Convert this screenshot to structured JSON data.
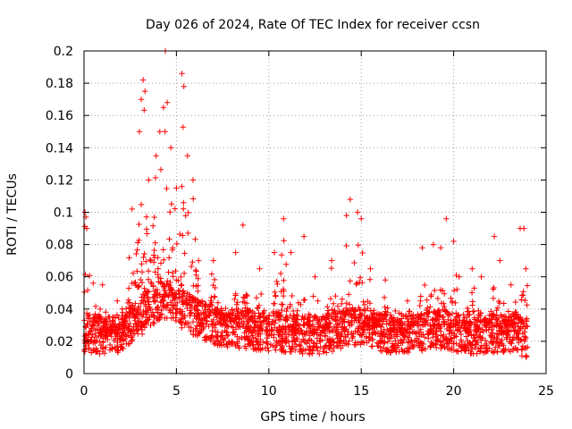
{
  "chart_data": {
    "type": "scatter",
    "title": "Day 026 of 2024, Rate Of TEC Index for receiver ccsn",
    "xlabel": "GPS time / hours",
    "ylabel": "ROTI / TECUs",
    "xlim": [
      0,
      25
    ],
    "ylim": [
      0,
      0.2
    ],
    "xticks": [
      0,
      5,
      10,
      15,
      20,
      25
    ],
    "yticks": [
      0,
      0.02,
      0.04,
      0.06,
      0.08,
      0.1,
      0.12,
      0.14,
      0.16,
      0.18,
      0.2
    ],
    "ytick_labels": [
      "0",
      "0.02",
      "0.04",
      "0.06",
      "0.08",
      "0.1",
      "0.12",
      "0.14",
      "0.16",
      "0.18",
      "0.2"
    ],
    "grid": true,
    "marker": "+",
    "marker_color": "#ff0000",
    "baseline": [
      [
        0.0,
        0.025
      ],
      [
        1.0,
        0.024
      ],
      [
        2.0,
        0.025
      ],
      [
        2.5,
        0.03
      ],
      [
        3.0,
        0.035
      ],
      [
        3.5,
        0.04
      ],
      [
        4.0,
        0.045
      ],
      [
        4.5,
        0.045
      ],
      [
        5.0,
        0.04
      ],
      [
        5.5,
        0.04
      ],
      [
        6.0,
        0.035
      ],
      [
        7.0,
        0.03
      ],
      [
        8.0,
        0.028
      ],
      [
        9.0,
        0.027
      ],
      [
        10.0,
        0.026
      ],
      [
        11.0,
        0.025
      ],
      [
        12.0,
        0.024
      ],
      [
        13.0,
        0.024
      ],
      [
        14.0,
        0.028
      ],
      [
        15.0,
        0.03
      ],
      [
        16.0,
        0.026
      ],
      [
        17.0,
        0.024
      ],
      [
        18.0,
        0.025
      ],
      [
        19.0,
        0.028
      ],
      [
        20.0,
        0.026
      ],
      [
        21.0,
        0.024
      ],
      [
        22.0,
        0.025
      ],
      [
        23.0,
        0.025
      ],
      [
        24.0,
        0.022
      ]
    ],
    "peaks": [
      {
        "x": 0.05,
        "y": 0.1
      },
      {
        "x": 0.1,
        "y": 0.097
      },
      {
        "x": 0.15,
        "y": 0.09
      },
      {
        "x": 0.5,
        "y": 0.056
      },
      {
        "x": 1.0,
        "y": 0.055
      },
      {
        "x": 1.8,
        "y": 0.045
      },
      {
        "x": 2.6,
        "y": 0.102
      },
      {
        "x": 3.0,
        "y": 0.15
      },
      {
        "x": 3.1,
        "y": 0.17
      },
      {
        "x": 3.2,
        "y": 0.182
      },
      {
        "x": 3.3,
        "y": 0.175
      },
      {
        "x": 3.5,
        "y": 0.12
      },
      {
        "x": 3.9,
        "y": 0.135
      },
      {
        "x": 4.1,
        "y": 0.15
      },
      {
        "x": 4.3,
        "y": 0.165
      },
      {
        "x": 4.4,
        "y": 0.2
      },
      {
        "x": 4.5,
        "y": 0.168
      },
      {
        "x": 4.7,
        "y": 0.14
      },
      {
        "x": 5.0,
        "y": 0.115
      },
      {
        "x": 5.3,
        "y": 0.186
      },
      {
        "x": 5.4,
        "y": 0.178
      },
      {
        "x": 5.6,
        "y": 0.135
      },
      {
        "x": 5.9,
        "y": 0.12
      },
      {
        "x": 6.2,
        "y": 0.07
      },
      {
        "x": 7.0,
        "y": 0.07
      },
      {
        "x": 8.2,
        "y": 0.075
      },
      {
        "x": 8.6,
        "y": 0.092
      },
      {
        "x": 9.5,
        "y": 0.065
      },
      {
        "x": 10.3,
        "y": 0.075
      },
      {
        "x": 10.8,
        "y": 0.096
      },
      {
        "x": 11.2,
        "y": 0.075
      },
      {
        "x": 11.9,
        "y": 0.085
      },
      {
        "x": 12.5,
        "y": 0.06
      },
      {
        "x": 13.4,
        "y": 0.07
      },
      {
        "x": 14.2,
        "y": 0.098
      },
      {
        "x": 14.4,
        "y": 0.108
      },
      {
        "x": 14.8,
        "y": 0.1
      },
      {
        "x": 15.0,
        "y": 0.096
      },
      {
        "x": 15.5,
        "y": 0.065
      },
      {
        "x": 16.3,
        "y": 0.058
      },
      {
        "x": 17.5,
        "y": 0.045
      },
      {
        "x": 18.3,
        "y": 0.078
      },
      {
        "x": 18.9,
        "y": 0.08
      },
      {
        "x": 19.3,
        "y": 0.078
      },
      {
        "x": 19.6,
        "y": 0.096
      },
      {
        "x": 20.0,
        "y": 0.082
      },
      {
        "x": 20.3,
        "y": 0.06
      },
      {
        "x": 21.0,
        "y": 0.065
      },
      {
        "x": 21.5,
        "y": 0.06
      },
      {
        "x": 22.2,
        "y": 0.085
      },
      {
        "x": 22.5,
        "y": 0.07
      },
      {
        "x": 23.1,
        "y": 0.055
      },
      {
        "x": 23.6,
        "y": 0.09
      },
      {
        "x": 23.8,
        "y": 0.09
      },
      {
        "x": 23.9,
        "y": 0.065
      }
    ],
    "n_points": 2600
  }
}
